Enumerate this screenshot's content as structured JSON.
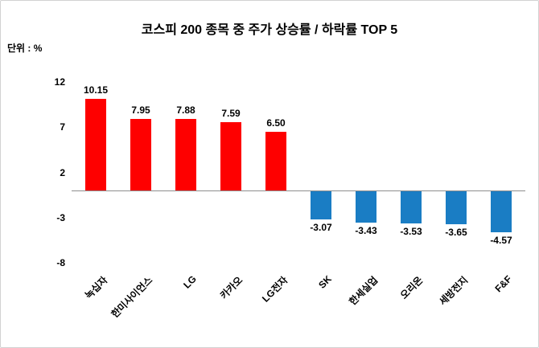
{
  "title": "코스피 200 종목 중 주가 상승률 / 하락률 TOP 5",
  "unit_label": "단위 : %",
  "chart_data": {
    "type": "bar",
    "categories": [
      "녹십자",
      "한미사이언스",
      "LG",
      "카카오",
      "LG전자",
      "SK",
      "한세실업",
      "오리온",
      "세방전지",
      "F&F"
    ],
    "values": [
      10.15,
      7.95,
      7.88,
      7.59,
      6.5,
      -3.07,
      -3.43,
      -3.53,
      -3.65,
      -4.57
    ],
    "value_labels": [
      "10.15",
      "7.95",
      "7.88",
      "7.59",
      "6.50",
      "-3.07",
      "-3.43",
      "-3.53",
      "-3.65",
      "-4.57"
    ],
    "yticks": [
      12,
      7,
      2,
      -3,
      -8
    ],
    "ylim": [
      -8,
      12
    ],
    "positive_color": "#FE0000",
    "negative_color": "#1A7DC4",
    "axis_line_color": "#8f8f8f",
    "grid": false,
    "legend": null
  }
}
